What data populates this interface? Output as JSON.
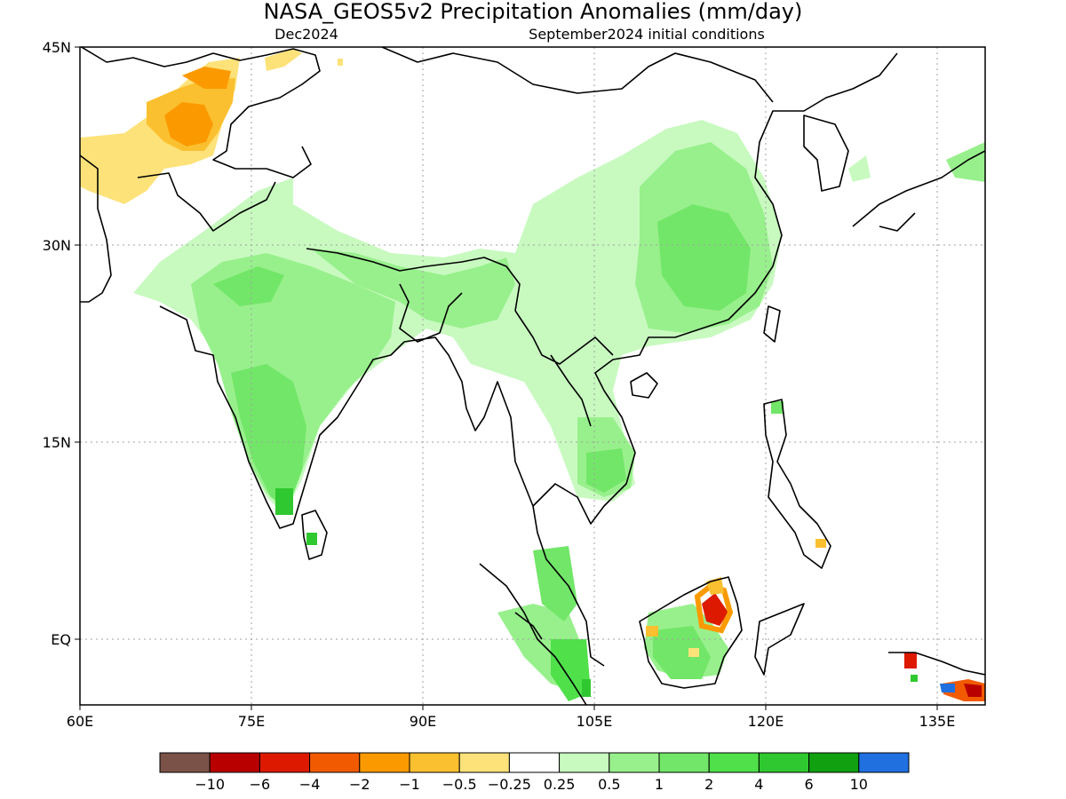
{
  "title": "NASA_GEOS5v2 Precipitation Anomalies (mm/day)",
  "subtitle_left": "Dec2024",
  "subtitle_right": "September2024 initial conditions",
  "lat_labels": [
    "45N",
    "30N",
    "15N",
    "EQ"
  ],
  "lon_labels": [
    "60E",
    "75E",
    "90E",
    "105E",
    "120E",
    "135E"
  ],
  "colorbar": {
    "colors": [
      "#7a5248",
      "#b80000",
      "#dd1a00",
      "#f25a00",
      "#fb9a00",
      "#fbc030",
      "#fde27a",
      "#ffffff",
      "#c8fac0",
      "#98f08c",
      "#72e668",
      "#4fe04a",
      "#30c830",
      "#10a010",
      "#2070e0"
    ],
    "labels": [
      "−10",
      "−6",
      "−4",
      "−2",
      "−1",
      "−0.5",
      "−0.25",
      "0.25",
      "0.5",
      "1",
      "2",
      "4",
      "6",
      "10"
    ]
  },
  "palette": {
    "ocean": "#ffffff",
    "coast": "#000000",
    "grid": "#a0a0a0",
    "dry_light": "#fde27a",
    "dry_mid": "#fbc030",
    "dry_strong": "#fb9a00",
    "wet_light": "#c8fac0",
    "wet_mid": "#98f08c",
    "wet_strong": "#72e668",
    "wet_heavy": "#30c830"
  }
}
